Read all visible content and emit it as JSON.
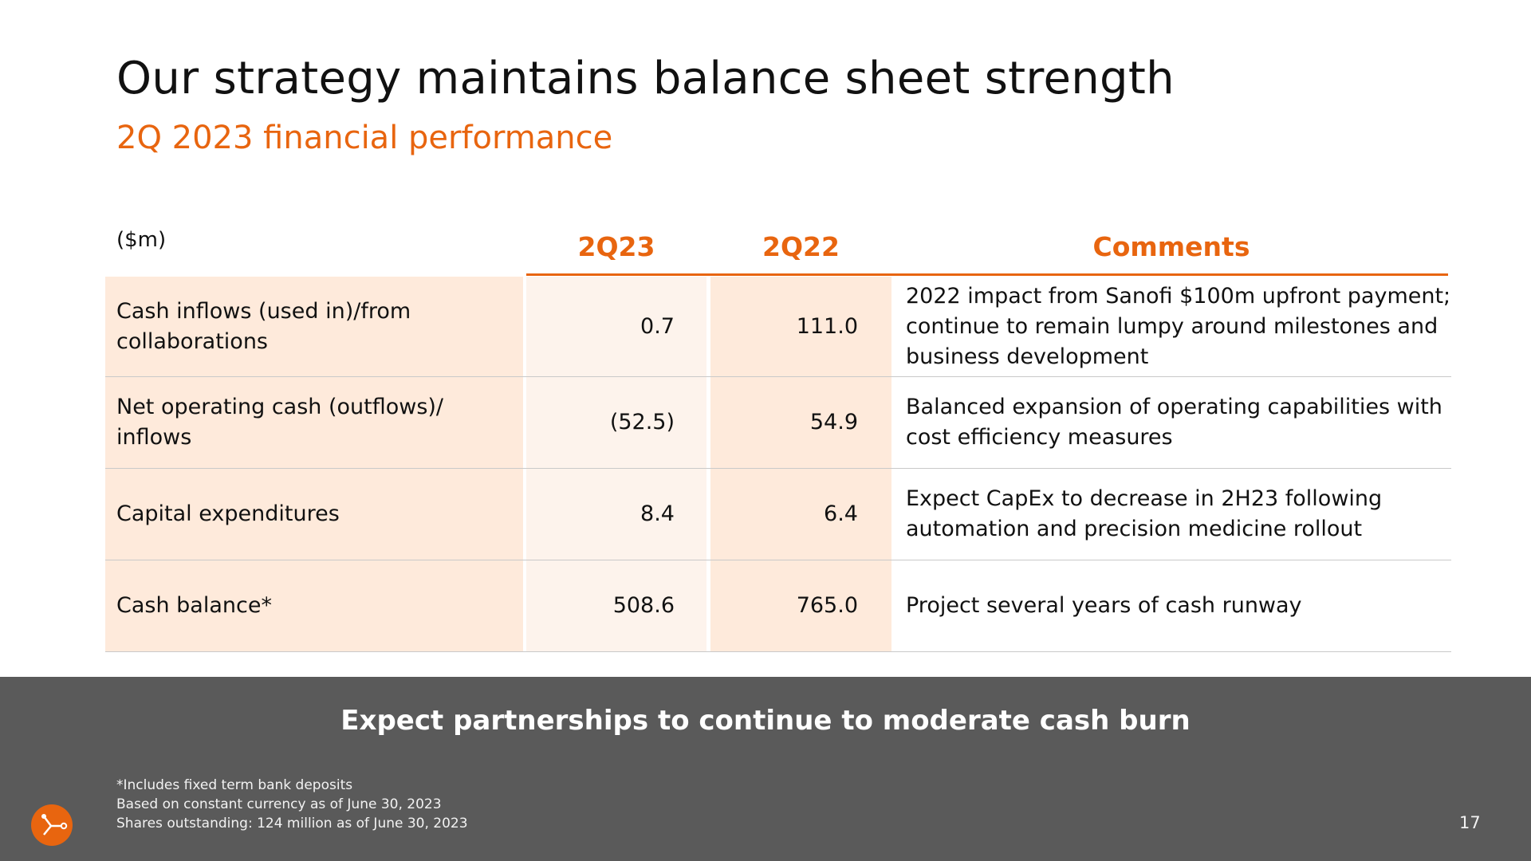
{
  "slide": {
    "title": "Our strategy maintains balance sheet strength",
    "subtitle": "2Q 2023 financial performance",
    "page_number": "17"
  },
  "table": {
    "unit_label": "($m)",
    "headers": {
      "col1": "2Q23",
      "col2": "2Q22",
      "comments": "Comments"
    },
    "rows": [
      {
        "label": "Cash inflows (used in)/from collaborations",
        "q23": "0.7",
        "q22": "111.0",
        "comment": "2022 impact from Sanofi $100m upfront payment; continue to remain lumpy around milestones and business development"
      },
      {
        "label": "Net operating cash (outflows)/ inflows",
        "q23": "(52.5)",
        "q22": "54.9",
        "comment": "Balanced expansion of operating capabilities with cost efficiency measures"
      },
      {
        "label": "Capital expenditures",
        "q23": "8.4",
        "q22": "6.4",
        "comment": "Expect CapEx to decrease in 2H23 following automation and precision medicine rollout"
      },
      {
        "label": "Cash balance*",
        "q23": "508.6",
        "q22": "765.0",
        "comment": "Project several years of cash runway"
      }
    ]
  },
  "banner": {
    "text": "Expect partnerships to continue to moderate cash burn"
  },
  "footnotes": [
    "*Includes fixed term bank deposits",
    "Based on constant currency as of June 30, 2023",
    "Shares outstanding: 124 million as of June 30, 2023"
  ],
  "colors": {
    "accent": "#e8650f",
    "banner": "#5a5a5a",
    "row_shade": "#feeadb",
    "row_shade_light": "#fdf3ec"
  },
  "logo": {
    "icon": "company-logo-icon"
  }
}
